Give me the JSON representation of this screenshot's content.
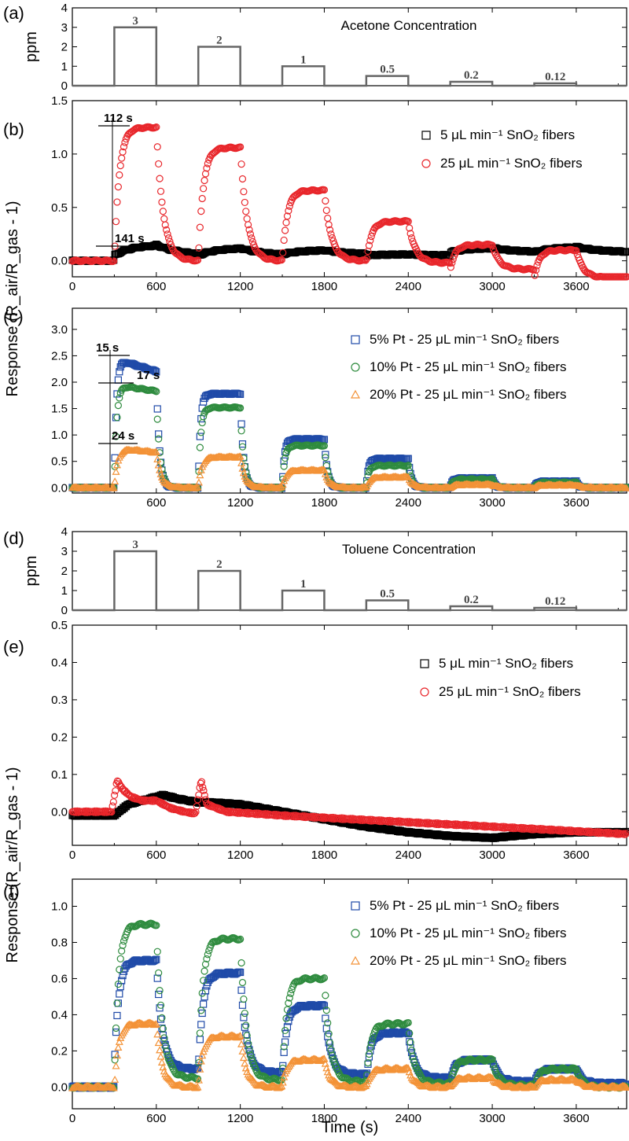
{
  "figure": {
    "ylabel_top": "Response (R_air/R_gas - 1)",
    "ylabel_bottom": "Response (R_air/R_gas - 1)",
    "xlabel": "Time (s)"
  },
  "chart_data": [
    {
      "id": "a",
      "panel": "(a)",
      "type": "bar",
      "title": "Acetone Concentration",
      "ylabel": "ppm",
      "xlim": [
        0,
        3960
      ],
      "ylim": [
        0,
        4
      ],
      "yticks": [
        0,
        1,
        2,
        3,
        4
      ],
      "pulses": [
        {
          "start": 300,
          "end": 600,
          "value": 3,
          "label": "3"
        },
        {
          "start": 900,
          "end": 1200,
          "value": 2,
          "label": "2"
        },
        {
          "start": 1500,
          "end": 1800,
          "value": 1,
          "label": "1"
        },
        {
          "start": 2100,
          "end": 2400,
          "value": 0.5,
          "label": "0.5"
        },
        {
          "start": 2700,
          "end": 3000,
          "value": 0.2,
          "label": "0.2"
        },
        {
          "start": 3300,
          "end": 3600,
          "value": 0.12,
          "label": "0.12"
        }
      ]
    },
    {
      "id": "b",
      "panel": "(b)",
      "type": "scatter",
      "xlim": [
        0,
        3960
      ],
      "ylim": [
        -0.15,
        1.5
      ],
      "yticks": [
        0.0,
        0.5,
        1.0,
        1.5
      ],
      "xticks": [
        0,
        600,
        1200,
        1800,
        2400,
        3000,
        3600
      ],
      "series": [
        {
          "name": "5 μL min⁻¹ SnO₂ fibers",
          "color": "#000000",
          "marker": "square",
          "baseline": [
            0.0,
            0.05,
            0.05,
            0.06,
            0.05,
            0.08,
            0.08
          ],
          "peaks": [
            0.15,
            0.12,
            0.1,
            0.06,
            0.12,
            0.13
          ],
          "tau": 120
        },
        {
          "name": "25 μL min⁻¹ SnO₂ fibers",
          "color": "#e8262b",
          "marker": "circle",
          "baseline": [
            0.0,
            0.0,
            0.0,
            0.0,
            -0.02,
            -0.08,
            -0.16
          ],
          "peaks": [
            1.25,
            1.06,
            0.66,
            0.37,
            0.15,
            0.1
          ],
          "tau": 35
        }
      ],
      "annotations": [
        "112 s",
        "141 s"
      ]
    },
    {
      "id": "c",
      "panel": "(c)",
      "type": "scatter",
      "xlim": [
        0,
        3960
      ],
      "ylim": [
        -0.1,
        3.4
      ],
      "yticks": [
        0.0,
        0.5,
        1.0,
        1.5,
        2.0,
        2.5,
        3.0
      ],
      "xticks": [
        600,
        1200,
        1800,
        2400,
        3000,
        3600
      ],
      "series": [
        {
          "name": "5% Pt - 25 μL min⁻¹ SnO₂ fibers",
          "color": "#1f4aa8",
          "marker": "square",
          "baseline": [
            0,
            0,
            0,
            0,
            0,
            0,
            0
          ],
          "peaks": [
            2.45,
            1.78,
            0.92,
            0.55,
            0.18,
            0.12
          ],
          "decay": [
            0.25,
            0.0,
            0.0,
            0.0,
            0.0,
            0.0
          ],
          "tau": 15
        },
        {
          "name": "10% Pt - 25 μL min⁻¹ SnO₂ fibers",
          "color": "#2e8b3e",
          "marker": "circle",
          "baseline": [
            0,
            0,
            0,
            0,
            0,
            0,
            0
          ],
          "peaks": [
            1.95,
            1.52,
            0.8,
            0.42,
            0.16,
            0.1
          ],
          "decay": [
            0.12,
            0.0,
            0.0,
            0.0,
            0.0,
            0.0
          ],
          "tau": 17
        },
        {
          "name": "20% Pt - 25 μL min⁻¹ SnO₂ fibers",
          "color": "#f39237",
          "marker": "triangle",
          "baseline": [
            0,
            0,
            0,
            0,
            0,
            0,
            0
          ],
          "peaks": [
            0.75,
            0.58,
            0.33,
            0.2,
            0.06,
            0.05
          ],
          "decay": [
            0.08,
            0.0,
            0.0,
            0.0,
            0.0,
            0.0
          ],
          "tau": 24
        }
      ],
      "annotations": [
        "15 s",
        "17 s",
        "24 s"
      ]
    },
    {
      "id": "d",
      "panel": "(d)",
      "type": "bar",
      "title": "Toluene Concentration",
      "ylabel": "ppm",
      "xlim": [
        0,
        3960
      ],
      "ylim": [
        0,
        4
      ],
      "yticks": [
        0,
        1,
        2,
        3,
        4
      ],
      "pulses": [
        {
          "start": 300,
          "end": 600,
          "value": 3,
          "label": "3"
        },
        {
          "start": 900,
          "end": 1200,
          "value": 2,
          "label": "2"
        },
        {
          "start": 1500,
          "end": 1800,
          "value": 1,
          "label": "1"
        },
        {
          "start": 2100,
          "end": 2400,
          "value": 0.5,
          "label": "0.5"
        },
        {
          "start": 2700,
          "end": 3000,
          "value": 0.2,
          "label": "0.2"
        },
        {
          "start": 3300,
          "end": 3600,
          "value": 0.12,
          "label": "0.12"
        }
      ]
    },
    {
      "id": "e",
      "panel": "(e)",
      "type": "scatter",
      "xlim": [
        0,
        3960
      ],
      "ylim": [
        -0.09,
        0.5
      ],
      "yticks": [
        0.0,
        0.1,
        0.2,
        0.3,
        0.4,
        0.5
      ],
      "xticks": [
        0,
        600,
        1200,
        1800,
        2400,
        3000,
        3600
      ],
      "series": [
        {
          "name": "5 μL min⁻¹ SnO₂ fibers",
          "color": "#000000",
          "marker": "square",
          "x": [
            0,
            300,
            400,
            500,
            600,
            650,
            750,
            900,
            1000,
            1200,
            1500,
            1800,
            2100,
            2400,
            2700,
            3000,
            3300,
            3600,
            3960
          ],
          "y": [
            -0.01,
            -0.01,
            0.02,
            0.03,
            0.04,
            0.045,
            0.035,
            0.025,
            0.025,
            0.02,
            0.0,
            -0.02,
            -0.04,
            -0.055,
            -0.065,
            -0.07,
            -0.06,
            -0.055,
            -0.055
          ]
        },
        {
          "name": "25 μL min⁻¹ SnO₂ fibers",
          "color": "#e8262b",
          "marker": "circle",
          "x": [
            0,
            280,
            300,
            320,
            360,
            420,
            500,
            600,
            700,
            800,
            880,
            900,
            920,
            960,
            1100,
            1500,
            2000,
            2500,
            3000,
            3500,
            3960
          ],
          "y": [
            0.0,
            0.0,
            0.04,
            0.085,
            0.06,
            0.04,
            0.03,
            0.03,
            0.01,
            0.0,
            -0.005,
            0.04,
            0.085,
            0.02,
            0.0,
            -0.01,
            -0.02,
            -0.03,
            -0.04,
            -0.05,
            -0.06
          ]
        }
      ]
    },
    {
      "id": "f",
      "panel": "(f)",
      "type": "scatter",
      "xlim": [
        0,
        3960
      ],
      "ylim": [
        -0.12,
        1.15
      ],
      "yticks": [
        0.0,
        0.2,
        0.4,
        0.6,
        0.8,
        1.0
      ],
      "xticks": [
        0,
        600,
        1200,
        1800,
        2400,
        3000,
        3600
      ],
      "series": [
        {
          "name": "5% Pt - 25 μL min⁻¹ SnO₂ fibers",
          "color": "#1f4aa8",
          "marker": "square",
          "baseline": [
            0.0,
            0.1,
            0.08,
            0.07,
            0.05,
            0.03,
            0.02
          ],
          "peaks": [
            0.7,
            0.63,
            0.45,
            0.3,
            0.15,
            0.1
          ],
          "tau": 30
        },
        {
          "name": "10% Pt - 25 μL min⁻¹ SnO₂ fibers",
          "color": "#2e8b3e",
          "marker": "circle",
          "baseline": [
            0.0,
            0.05,
            0.04,
            0.03,
            0.02,
            0.01,
            0.0
          ],
          "peaks": [
            0.9,
            0.82,
            0.6,
            0.35,
            0.15,
            0.1
          ],
          "tau": 30
        },
        {
          "name": "20% Pt - 25 μL min⁻¹ SnO₂ fibers",
          "color": "#f39237",
          "marker": "triangle",
          "baseline": [
            0.0,
            0.0,
            0.0,
            0.0,
            0.0,
            0.0,
            0.0
          ],
          "peaks": [
            0.35,
            0.28,
            0.15,
            0.1,
            0.05,
            0.04
          ],
          "tau": 30
        }
      ]
    }
  ]
}
